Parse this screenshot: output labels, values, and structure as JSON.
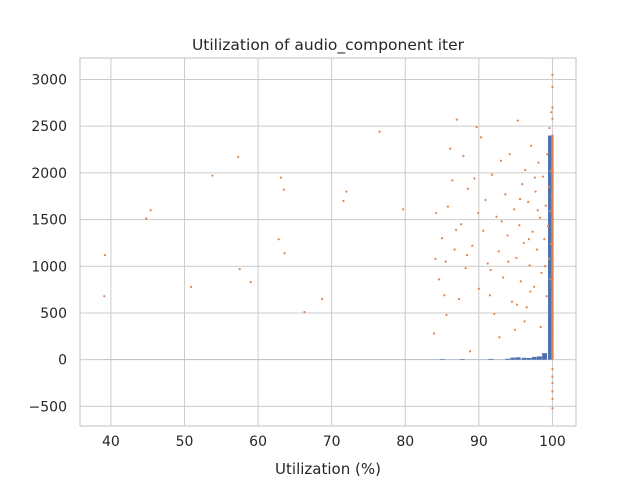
{
  "chart_data": {
    "type": "scatter",
    "title": "Utilization of audio_component iter",
    "xlabel": "Utilization (%)",
    "ylabel": "",
    "xlim": [
      35.8,
      103.2
    ],
    "ylim": [
      -710,
      3230
    ],
    "xticks": [
      40,
      50,
      60,
      70,
      80,
      90,
      100
    ],
    "yticks": [
      -500,
      0,
      500,
      1000,
      1500,
      2000,
      2500,
      3000
    ],
    "xtick_labels": [
      "40",
      "50",
      "60",
      "70",
      "80",
      "90",
      "100"
    ],
    "ytick_labels": [
      "−500",
      "0",
      "500",
      "1000",
      "1500",
      "2000",
      "2500",
      "3000"
    ],
    "grid": true,
    "colors": {
      "histogram": "#4c72b0",
      "points": "#dd8452",
      "grid": "#cccccc"
    },
    "histogram": {
      "bin_width": 0.72,
      "bins": [
        {
          "x": 84.7,
          "count": 4
        },
        {
          "x": 87.4,
          "count": 6
        },
        {
          "x": 91.3,
          "count": 8
        },
        {
          "x": 93.6,
          "count": 10
        },
        {
          "x": 94.3,
          "count": 22
        },
        {
          "x": 95.0,
          "count": 25
        },
        {
          "x": 95.8,
          "count": 20
        },
        {
          "x": 96.5,
          "count": 18
        },
        {
          "x": 97.2,
          "count": 30
        },
        {
          "x": 97.9,
          "count": 35
        },
        {
          "x": 98.6,
          "count": 70
        },
        {
          "x": 99.4,
          "count": 2400
        }
      ]
    },
    "points": [
      {
        "x": 39.2,
        "y": 1120
      },
      {
        "x": 39.1,
        "y": 680
      },
      {
        "x": 44.8,
        "y": 1510
      },
      {
        "x": 45.4,
        "y": 1600
      },
      {
        "x": 50.9,
        "y": 780
      },
      {
        "x": 53.8,
        "y": 1970
      },
      {
        "x": 57.3,
        "y": 2170
      },
      {
        "x": 57.5,
        "y": 970
      },
      {
        "x": 59.0,
        "y": 830
      },
      {
        "x": 62.8,
        "y": 1290
      },
      {
        "x": 63.1,
        "y": 1950
      },
      {
        "x": 63.5,
        "y": 1820
      },
      {
        "x": 63.6,
        "y": 1140
      },
      {
        "x": 66.3,
        "y": 510
      },
      {
        "x": 68.7,
        "y": 650
      },
      {
        "x": 71.6,
        "y": 1700
      },
      {
        "x": 72.0,
        "y": 1800
      },
      {
        "x": 76.5,
        "y": 2440
      },
      {
        "x": 79.7,
        "y": 1610
      },
      {
        "x": 83.9,
        "y": 280
      },
      {
        "x": 84.1,
        "y": 1080
      },
      {
        "x": 84.2,
        "y": 1570
      },
      {
        "x": 84.6,
        "y": 860
      },
      {
        "x": 85.0,
        "y": 1300
      },
      {
        "x": 85.3,
        "y": 690
      },
      {
        "x": 85.5,
        "y": 1050
      },
      {
        "x": 85.8,
        "y": 1640
      },
      {
        "x": 86.1,
        "y": 2260
      },
      {
        "x": 86.4,
        "y": 1920
      },
      {
        "x": 86.7,
        "y": 1180
      },
      {
        "x": 87.0,
        "y": 2570
      },
      {
        "x": 87.3,
        "y": 650
      },
      {
        "x": 87.6,
        "y": 1450
      },
      {
        "x": 87.9,
        "y": 2180
      },
      {
        "x": 88.2,
        "y": 980
      },
      {
        "x": 88.5,
        "y": 1830
      },
      {
        "x": 88.8,
        "y": 90
      },
      {
        "x": 89.1,
        "y": 1220
      },
      {
        "x": 89.4,
        "y": 1940
      },
      {
        "x": 89.7,
        "y": 2490
      },
      {
        "x": 90.0,
        "y": 760
      },
      {
        "x": 90.3,
        "y": 2380
      },
      {
        "x": 90.6,
        "y": 1380
      },
      {
        "x": 90.9,
        "y": 1710
      },
      {
        "x": 91.2,
        "y": 1030
      },
      {
        "x": 91.5,
        "y": 690
      },
      {
        "x": 91.8,
        "y": 1980
      },
      {
        "x": 92.1,
        "y": 490
      },
      {
        "x": 92.4,
        "y": 1530
      },
      {
        "x": 92.7,
        "y": 1160
      },
      {
        "x": 93.0,
        "y": 2130
      },
      {
        "x": 93.3,
        "y": 880
      },
      {
        "x": 93.6,
        "y": 1770
      },
      {
        "x": 93.9,
        "y": 1330
      },
      {
        "x": 94.2,
        "y": 2200
      },
      {
        "x": 94.5,
        "y": 620
      },
      {
        "x": 94.8,
        "y": 1610
      },
      {
        "x": 95.1,
        "y": 1090
      },
      {
        "x": 95.3,
        "y": 2560
      },
      {
        "x": 95.5,
        "y": 1440
      },
      {
        "x": 95.7,
        "y": 840
      },
      {
        "x": 95.9,
        "y": 1880
      },
      {
        "x": 96.1,
        "y": 1250
      },
      {
        "x": 96.3,
        "y": 2030
      },
      {
        "x": 96.5,
        "y": 560
      },
      {
        "x": 96.7,
        "y": 1690
      },
      {
        "x": 96.9,
        "y": 1010
      },
      {
        "x": 97.1,
        "y": 2290
      },
      {
        "x": 97.3,
        "y": 1370
      },
      {
        "x": 97.5,
        "y": 780
      },
      {
        "x": 97.7,
        "y": 1800
      },
      {
        "x": 97.9,
        "y": 1180
      },
      {
        "x": 98.1,
        "y": 2110
      },
      {
        "x": 98.3,
        "y": 1520
      },
      {
        "x": 98.5,
        "y": 930
      },
      {
        "x": 98.7,
        "y": 1960
      },
      {
        "x": 98.9,
        "y": 1290
      },
      {
        "x": 99.1,
        "y": 1650
      },
      {
        "x": 99.2,
        "y": 680
      },
      {
        "x": 99.3,
        "y": 2200
      },
      {
        "x": 99.4,
        "y": 1430
      },
      {
        "x": 99.5,
        "y": 1850
      },
      {
        "x": 99.55,
        "y": 1080
      },
      {
        "x": 99.6,
        "y": 2480
      },
      {
        "x": 99.65,
        "y": 1590
      },
      {
        "x": 99.7,
        "y": 860
      },
      {
        "x": 99.75,
        "y": 2020
      },
      {
        "x": 99.8,
        "y": 1240
      },
      {
        "x": 99.85,
        "y": 2650
      },
      {
        "x": 99.9,
        "y": 1760
      },
      {
        "x": 99.95,
        "y": 520
      },
      {
        "x": 100.0,
        "y": 3050
      },
      {
        "x": 100.0,
        "y": 2920
      },
      {
        "x": 100.0,
        "y": 2700
      },
      {
        "x": 100.0,
        "y": 2580
      },
      {
        "x": 100.0,
        "y": 2400
      },
      {
        "x": 100.0,
        "y": 2250
      },
      {
        "x": 100.0,
        "y": 2100
      },
      {
        "x": 100.0,
        "y": 1900
      },
      {
        "x": 100.0,
        "y": 1700
      },
      {
        "x": 100.0,
        "y": 1500
      },
      {
        "x": 100.0,
        "y": 1300
      },
      {
        "x": 100.0,
        "y": 1100
      },
      {
        "x": 100.0,
        "y": 900
      },
      {
        "x": 100.0,
        "y": 700
      },
      {
        "x": 100.0,
        "y": 500
      },
      {
        "x": 100.0,
        "y": 300
      },
      {
        "x": 100.0,
        "y": 100
      },
      {
        "x": 100.0,
        "y": -100
      },
      {
        "x": 100.0,
        "y": -180
      },
      {
        "x": 100.0,
        "y": -250
      },
      {
        "x": 100.0,
        "y": -340
      },
      {
        "x": 100.0,
        "y": -420
      },
      {
        "x": 100.0,
        "y": -520
      },
      {
        "x": 94.9,
        "y": 320
      },
      {
        "x": 96.2,
        "y": 410
      },
      {
        "x": 92.8,
        "y": 240
      },
      {
        "x": 98.4,
        "y": 350
      },
      {
        "x": 97.6,
        "y": 1950
      },
      {
        "x": 95.6,
        "y": 1720
      },
      {
        "x": 93.1,
        "y": 1480
      },
      {
        "x": 91.6,
        "y": 960
      },
      {
        "x": 89.9,
        "y": 1570
      },
      {
        "x": 88.4,
        "y": 1120
      },
      {
        "x": 86.9,
        "y": 1390
      },
      {
        "x": 85.6,
        "y": 480
      },
      {
        "x": 94.0,
        "y": 1050
      },
      {
        "x": 96.8,
        "y": 1290
      },
      {
        "x": 98.0,
        "y": 1600
      },
      {
        "x": 99.0,
        "y": 1000
      },
      {
        "x": 97.0,
        "y": 730
      },
      {
        "x": 95.2,
        "y": 590
      }
    ]
  }
}
